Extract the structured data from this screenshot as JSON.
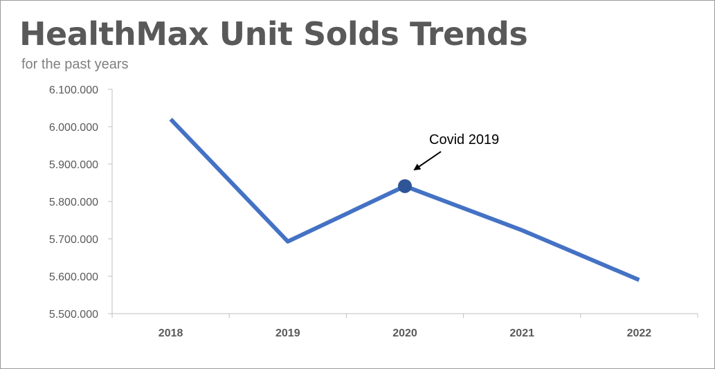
{
  "chart_data": {
    "type": "line",
    "title": "HealthMax Unit Solds Trends",
    "subtitle": "for the past years",
    "xlabel": "",
    "ylabel": "",
    "categories": [
      "2018",
      "2019",
      "2020",
      "2021",
      "2022"
    ],
    "series": [
      {
        "values": [
          6020000,
          5693000,
          5841000,
          5723000,
          5590000
        ],
        "color": "#4472c4"
      }
    ],
    "ylim": [
      5500000,
      6100000
    ],
    "yticks": [
      {
        "value": 6100000,
        "label": "6.100.000"
      },
      {
        "value": 6000000,
        "label": "6.000.000"
      },
      {
        "value": 5900000,
        "label": "5.900.000"
      },
      {
        "value": 5800000,
        "label": "5.800.000"
      },
      {
        "value": 5700000,
        "label": "5.700.000"
      },
      {
        "value": 5600000,
        "label": "5.600.000"
      },
      {
        "value": 5500000,
        "label": "5.500.000"
      }
    ],
    "grid": false,
    "highlight": {
      "category": "2020",
      "value": 5841000,
      "color": "#2f5597"
    },
    "annotation": {
      "text": "Covid 2019",
      "category": "2020"
    }
  }
}
